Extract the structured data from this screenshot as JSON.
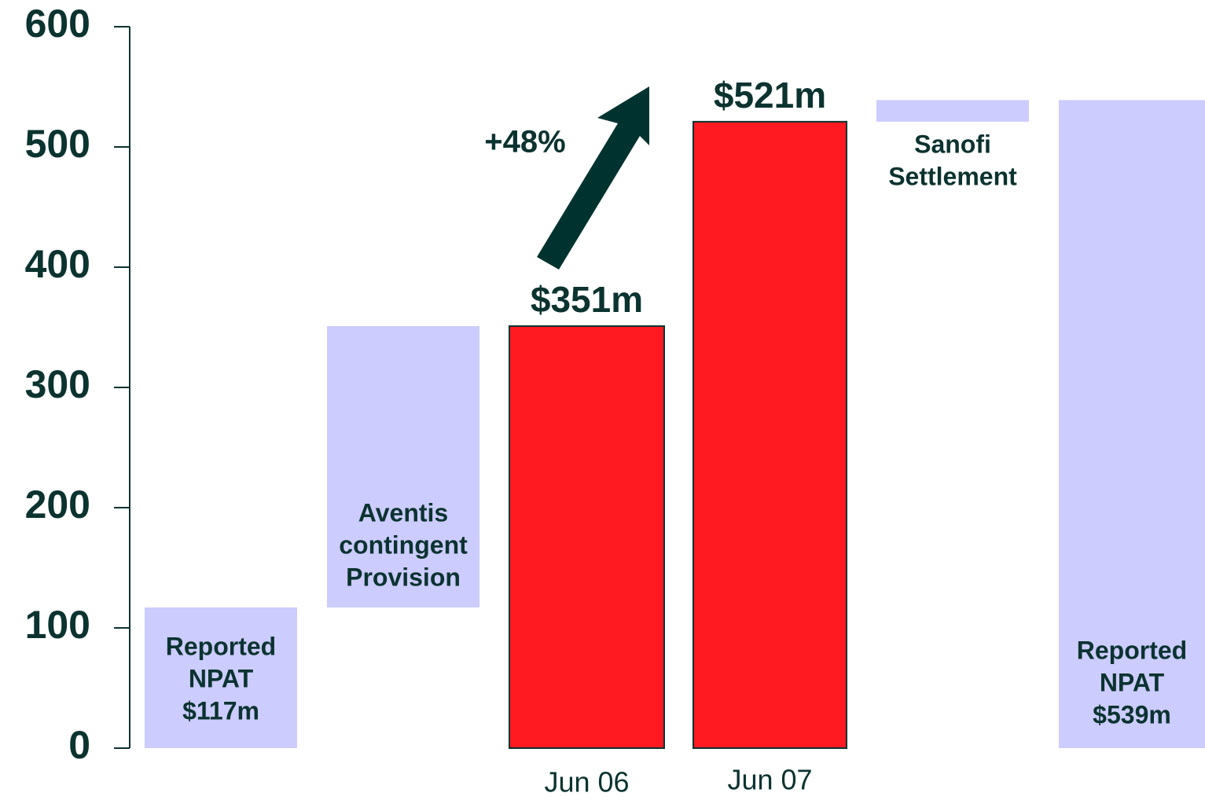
{
  "chart_data": {
    "type": "waterfall",
    "categories": [
      null,
      null,
      "Jun 06",
      "Jun 07",
      null,
      null
    ],
    "values": [
      117,
      234,
      351,
      521,
      18,
      539
    ],
    "measure": [
      "absolute",
      "relative",
      "absolute",
      "absolute",
      "relative",
      "absolute"
    ],
    "value_labels": [
      null,
      null,
      "$351m",
      "$521m",
      null,
      null
    ],
    "bar_texts": [
      [
        "Reported",
        "NPAT",
        "$117m"
      ],
      [
        "Aventis",
        "contingent",
        "Provision"
      ],
      null,
      null,
      [
        "Sanofi",
        "Settlement"
      ],
      [
        "Reported",
        "NPAT",
        "$539m"
      ]
    ],
    "colors": [
      "#ccccff",
      "#ccccff",
      "#ff1a22",
      "#ff1a22",
      "#ccccff",
      "#ccccff"
    ],
    "annotation": "+48%",
    "ylim": [
      0,
      600
    ],
    "yticks": [
      0,
      100,
      200,
      300,
      400,
      500,
      600
    ]
  }
}
